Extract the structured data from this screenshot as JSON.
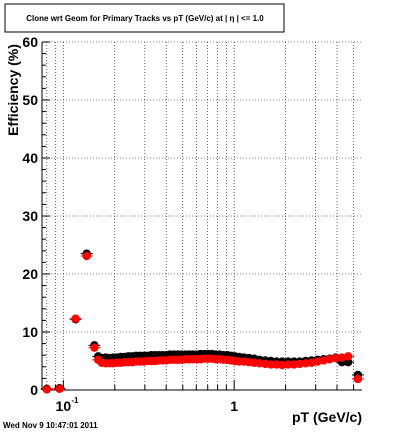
{
  "chart_data": {
    "type": "scatter",
    "title": "Clone wrt Geom for Primary Tracks vs pT (GeV/c) at | η | <= 1.0",
    "xlabel": "pT (GeV/c)",
    "ylabel": "Efficiency (%)",
    "x_scale": "log",
    "xlim": [
      0.075,
      5.6
    ],
    "ylim": [
      0,
      60
    ],
    "x_ticks": [
      {
        "value": 0.1,
        "label": "10",
        "exponent": "-1"
      },
      {
        "value": 1,
        "label": "1",
        "exponent": ""
      }
    ],
    "y_ticks": [
      0,
      10,
      20,
      30,
      40,
      50,
      60
    ],
    "y_tick_labels": [
      "0",
      "10",
      "20",
      "30",
      "40",
      "50",
      "60"
    ],
    "grid": true,
    "series": [
      {
        "color": "#000000",
        "x": [
          0.08,
          0.095,
          0.118,
          0.137,
          0.152,
          0.16,
          0.168,
          0.177,
          0.186,
          0.196,
          0.206,
          0.217,
          0.228,
          0.24,
          0.253,
          0.266,
          0.28,
          0.295,
          0.31,
          0.327,
          0.344,
          0.362,
          0.381,
          0.401,
          0.422,
          0.444,
          0.468,
          0.492,
          0.518,
          0.546,
          0.574,
          0.605,
          0.636,
          0.67,
          0.705,
          0.742,
          0.781,
          0.822,
          0.866,
          0.911,
          0.959,
          1.01,
          1.07,
          1.14,
          1.22,
          1.31,
          1.41,
          1.52,
          1.64,
          1.77,
          1.91,
          2.07,
          2.24,
          2.42,
          2.62,
          2.84,
          3.08,
          3.34,
          3.62,
          3.93,
          4.27,
          4.65,
          5.3
        ],
        "y": [
          0.2,
          0.3,
          12.2,
          23.5,
          7.7,
          5.8,
          5.5,
          5.6,
          5.5,
          5.6,
          5.6,
          5.7,
          5.7,
          5.8,
          5.8,
          5.9,
          5.9,
          5.9,
          5.9,
          6.0,
          6.0,
          6.0,
          6.0,
          6.0,
          6.1,
          6.1,
          6.1,
          6.1,
          6.1,
          6.1,
          6.1,
          6.1,
          6.2,
          6.2,
          6.2,
          6.2,
          6.1,
          6.1,
          6.0,
          6.0,
          5.9,
          5.8,
          5.7,
          5.6,
          5.5,
          5.4,
          5.2,
          5.1,
          5.0,
          4.9,
          4.9,
          4.9,
          4.9,
          4.9,
          5.0,
          5.1,
          5.2,
          5.3,
          5.4,
          5.6,
          4.8,
          4.8,
          2.6
        ]
      },
      {
        "color": "#ff0000",
        "x": [
          0.08,
          0.095,
          0.118,
          0.137,
          0.152,
          0.16,
          0.168,
          0.177,
          0.186,
          0.196,
          0.206,
          0.217,
          0.228,
          0.24,
          0.253,
          0.266,
          0.28,
          0.295,
          0.31,
          0.327,
          0.344,
          0.362,
          0.381,
          0.401,
          0.422,
          0.444,
          0.468,
          0.492,
          0.518,
          0.546,
          0.574,
          0.605,
          0.636,
          0.67,
          0.705,
          0.742,
          0.781,
          0.822,
          0.866,
          0.911,
          0.959,
          1.01,
          1.07,
          1.14,
          1.22,
          1.31,
          1.41,
          1.52,
          1.64,
          1.77,
          1.91,
          2.07,
          2.24,
          2.42,
          2.62,
          2.84,
          3.08,
          3.34,
          3.62,
          3.93,
          4.27,
          4.65,
          5.3
        ],
        "y": [
          0.1,
          0.2,
          12.3,
          23.1,
          7.3,
          5.2,
          4.7,
          4.6,
          4.6,
          4.6,
          4.7,
          4.7,
          4.8,
          4.8,
          4.8,
          4.9,
          4.9,
          4.9,
          5.0,
          5.0,
          5.0,
          5.1,
          5.1,
          5.1,
          5.2,
          5.2,
          5.2,
          5.2,
          5.3,
          5.3,
          5.3,
          5.3,
          5.3,
          5.4,
          5.4,
          5.4,
          5.3,
          5.3,
          5.2,
          5.2,
          5.1,
          5.0,
          4.9,
          4.9,
          4.8,
          4.7,
          4.6,
          4.5,
          4.4,
          4.4,
          4.3,
          4.4,
          4.4,
          4.5,
          4.6,
          4.7,
          4.9,
          5.1,
          5.3,
          5.5,
          5.6,
          5.8,
          1.9
        ]
      }
    ]
  },
  "footer": {
    "timestamp": "Wed Nov  9 10:47:01 2011"
  }
}
